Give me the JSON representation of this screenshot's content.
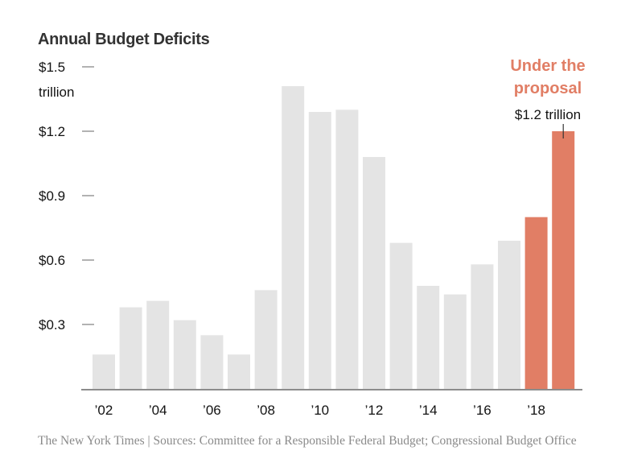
{
  "chart_data": {
    "type": "bar",
    "title": "Annual Budget Deficits",
    "xlabel": "",
    "ylabel": "",
    "ylim": [
      0,
      1.5
    ],
    "y_unit_label": "trillion",
    "y_ticks": [
      {
        "value": 1.5,
        "label": "$1.5"
      },
      {
        "value": 1.2,
        "label": "$1.2"
      },
      {
        "value": 0.9,
        "label": "$0.9"
      },
      {
        "value": 0.6,
        "label": "$0.6"
      },
      {
        "value": 0.3,
        "label": "$0.3"
      }
    ],
    "categories": [
      "2002",
      "2003",
      "2004",
      "2005",
      "2006",
      "2007",
      "2008",
      "2009",
      "2010",
      "2011",
      "2012",
      "2013",
      "2014",
      "2015",
      "2016",
      "2017",
      "2018",
      "2019"
    ],
    "x_tick_labels": [
      {
        "category": "2002",
        "label": "’02"
      },
      {
        "category": "2004",
        "label": "’04"
      },
      {
        "category": "2006",
        "label": "’06"
      },
      {
        "category": "2008",
        "label": "’08"
      },
      {
        "category": "2010",
        "label": "’10"
      },
      {
        "category": "2012",
        "label": "’12"
      },
      {
        "category": "2014",
        "label": "’14"
      },
      {
        "category": "2016",
        "label": "’16"
      },
      {
        "category": "2018",
        "label": "’18"
      }
    ],
    "series": [
      {
        "name": "Annual budget deficit ($ trillion)",
        "values": [
          0.16,
          0.38,
          0.41,
          0.32,
          0.25,
          0.16,
          0.46,
          1.41,
          1.29,
          1.3,
          1.08,
          0.68,
          0.48,
          0.44,
          0.58,
          0.69,
          0.8,
          1.2
        ],
        "highlighted": [
          false,
          false,
          false,
          false,
          false,
          false,
          false,
          false,
          false,
          false,
          false,
          false,
          false,
          false,
          false,
          false,
          true,
          true
        ]
      }
    ],
    "colors": {
      "historical": "#e4e4e4",
      "proposal": "#e17e65",
      "baseline": "#666666",
      "tick": "#999999"
    },
    "grid": false,
    "annotation": {
      "heading_line1": "Under the",
      "heading_line2": "proposal",
      "value_label": "$1.2 trillion",
      "target_category": "2019",
      "color": "#e17e65"
    }
  },
  "footer": {
    "credit": "The New York Times | Sources: Committee for a Responsible Federal Budget; Congressional Budget Office"
  }
}
